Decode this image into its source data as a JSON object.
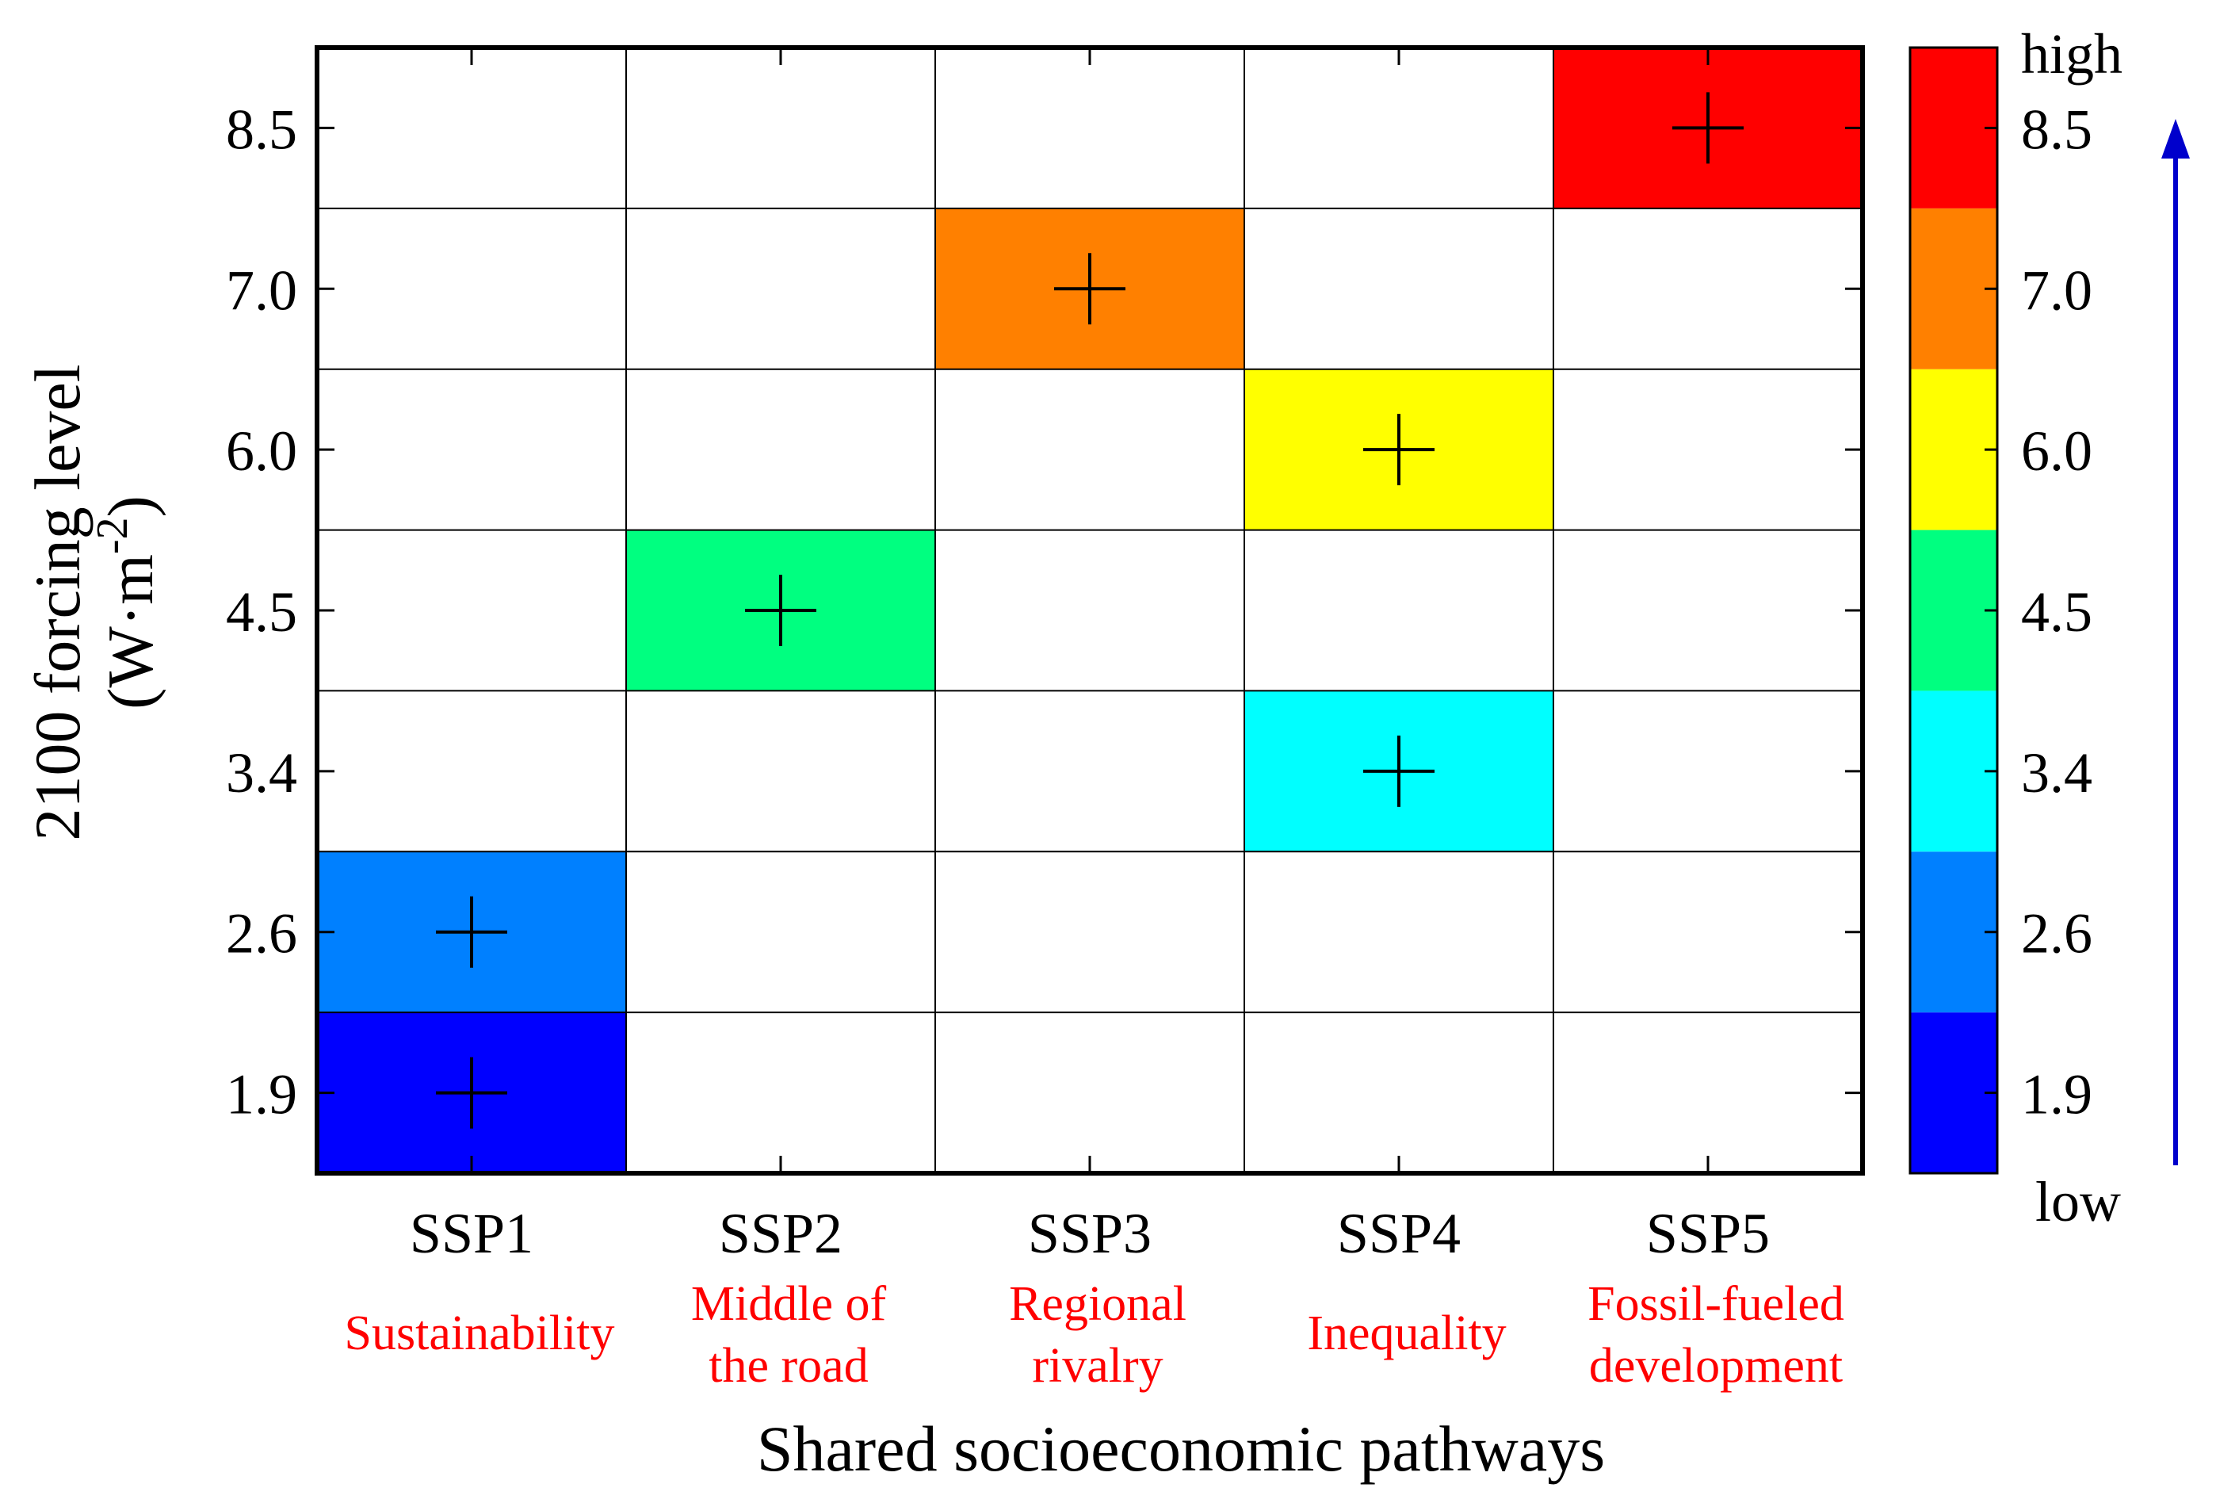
{
  "chart_data": {
    "type": "heatmap",
    "title": "",
    "xlabel": "Shared socioeconomic pathways",
    "ylabel_line1": "2100 forcing  level",
    "ylabel_unit": {
      "prefix": "(W·m",
      "exponent": "-2",
      "suffix": ")"
    },
    "x_categories": [
      "SSP1",
      "SSP2",
      "SSP3",
      "SSP4",
      "SSP5"
    ],
    "x_descriptions": [
      [
        "Sustainability"
      ],
      [
        "Middle of",
        "the road"
      ],
      [
        "Regional",
        "rivalry"
      ],
      [
        "Inequality"
      ],
      [
        "Fossil-fueled",
        "development"
      ]
    ],
    "y_categories": [
      "1.9",
      "2.6",
      "3.4",
      "4.5",
      "6.0",
      "7.0",
      "8.5"
    ],
    "cells": [
      {
        "ssp": "SSP1",
        "forcing": "1.9"
      },
      {
        "ssp": "SSP1",
        "forcing": "2.6"
      },
      {
        "ssp": "SSP2",
        "forcing": "4.5"
      },
      {
        "ssp": "SSP3",
        "forcing": "7.0"
      },
      {
        "ssp": "SSP4",
        "forcing": "3.4"
      },
      {
        "ssp": "SSP4",
        "forcing": "6.0"
      },
      {
        "ssp": "SSP5",
        "forcing": "8.5"
      }
    ],
    "colorbar": {
      "levels": [
        "1.9",
        "2.6",
        "3.4",
        "4.5",
        "6.0",
        "7.0",
        "8.5"
      ],
      "colors": [
        "#0000ff",
        "#0080ff",
        "#00ffff",
        "#00ff80",
        "#ffff00",
        "#ff8000",
        "#ff0000"
      ],
      "low_label": "low",
      "high_label": "high",
      "arrow_color": "#0000cc"
    },
    "colors": {
      "grid": "#000000",
      "marker": "#000000",
      "description_text": "#ff0000",
      "axis_text": "#000000"
    }
  }
}
